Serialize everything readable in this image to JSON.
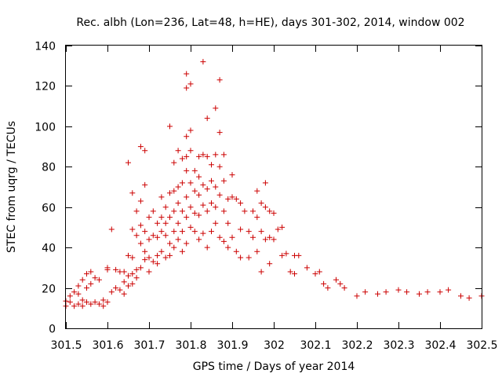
{
  "chart_data": {
    "type": "scatter",
    "title": "Rec. albh (Lon=236, Lat=48, h=HE), days 301-302, 2014, window 002",
    "xlabel": "GPS time / Days of year 2014",
    "ylabel": "STEC from uqrg / TECUs",
    "xlim": [
      301.5,
      302.5
    ],
    "ylim": [
      0,
      140
    ],
    "xticks": [
      301.5,
      301.6,
      301.7,
      301.8,
      301.9,
      302,
      302.1,
      302.2,
      302.3,
      302.4,
      302.5
    ],
    "xtick_labels": [
      "301.5",
      "301.6",
      "301.7",
      "301.8",
      "301.9",
      "302",
      "302.1",
      "302.2",
      "302.3",
      "302.4",
      "302.5"
    ],
    "yticks": [
      0,
      20,
      40,
      60,
      80,
      100,
      120,
      140
    ],
    "ytick_labels": [
      "0",
      "20",
      "40",
      "60",
      "80",
      "100",
      "120",
      "140"
    ],
    "grid": false,
    "marker": "+",
    "marker_color": "#cc0000",
    "points": [
      [
        301.5,
        13.5
      ],
      [
        301.5,
        11
      ],
      [
        301.51,
        16
      ],
      [
        301.51,
        13
      ],
      [
        301.52,
        18
      ],
      [
        301.52,
        11
      ],
      [
        301.53,
        21
      ],
      [
        301.53,
        17
      ],
      [
        301.53,
        12
      ],
      [
        301.54,
        24
      ],
      [
        301.54,
        14
      ],
      [
        301.54,
        11
      ],
      [
        301.55,
        27
      ],
      [
        301.55,
        20
      ],
      [
        301.55,
        13
      ],
      [
        301.56,
        28
      ],
      [
        301.56,
        22
      ],
      [
        301.56,
        12
      ],
      [
        301.57,
        25
      ],
      [
        301.57,
        13
      ],
      [
        301.58,
        24
      ],
      [
        301.58,
        12
      ],
      [
        301.59,
        11
      ],
      [
        301.59,
        14
      ],
      [
        301.6,
        30
      ],
      [
        301.6,
        29
      ],
      [
        301.6,
        13
      ],
      [
        301.61,
        49
      ],
      [
        301.61,
        18
      ],
      [
        301.62,
        29
      ],
      [
        301.62,
        20
      ],
      [
        301.63,
        28
      ],
      [
        301.63,
        19
      ],
      [
        301.64,
        28
      ],
      [
        301.64,
        23
      ],
      [
        301.64,
        17
      ],
      [
        301.65,
        82
      ],
      [
        301.65,
        36
      ],
      [
        301.65,
        26
      ],
      [
        301.65,
        21
      ],
      [
        301.66,
        35
      ],
      [
        301.66,
        27
      ],
      [
        301.66,
        22
      ],
      [
        301.66,
        67
      ],
      [
        301.66,
        49
      ],
      [
        301.67,
        58
      ],
      [
        301.67,
        46
      ],
      [
        301.67,
        29
      ],
      [
        301.67,
        25
      ],
      [
        301.68,
        90
      ],
      [
        301.68,
        63
      ],
      [
        301.68,
        51
      ],
      [
        301.68,
        42
      ],
      [
        301.68,
        30
      ],
      [
        301.69,
        88
      ],
      [
        301.69,
        71
      ],
      [
        301.69,
        48
      ],
      [
        301.69,
        38
      ],
      [
        301.69,
        34
      ],
      [
        301.7,
        55
      ],
      [
        301.7,
        44
      ],
      [
        301.7,
        35
      ],
      [
        301.7,
        28
      ],
      [
        301.71,
        58
      ],
      [
        301.71,
        46
      ],
      [
        301.71,
        33
      ],
      [
        301.72,
        52
      ],
      [
        301.72,
        45
      ],
      [
        301.72,
        36
      ],
      [
        301.72,
        32
      ],
      [
        301.73,
        65
      ],
      [
        301.73,
        55
      ],
      [
        301.73,
        48
      ],
      [
        301.73,
        38
      ],
      [
        301.74,
        60
      ],
      [
        301.74,
        52
      ],
      [
        301.74,
        46
      ],
      [
        301.74,
        35
      ],
      [
        301.75,
        100
      ],
      [
        301.75,
        67
      ],
      [
        301.75,
        55
      ],
      [
        301.75,
        42
      ],
      [
        301.75,
        36
      ],
      [
        301.76,
        82
      ],
      [
        301.76,
        68
      ],
      [
        301.76,
        58
      ],
      [
        301.76,
        48
      ],
      [
        301.76,
        40
      ],
      [
        301.77,
        88
      ],
      [
        301.77,
        70
      ],
      [
        301.77,
        62
      ],
      [
        301.77,
        52
      ],
      [
        301.77,
        44
      ],
      [
        301.78,
        84
      ],
      [
        301.78,
        72
      ],
      [
        301.78,
        58
      ],
      [
        301.78,
        48
      ],
      [
        301.78,
        38
      ],
      [
        301.79,
        126
      ],
      [
        301.79,
        119
      ],
      [
        301.79,
        95
      ],
      [
        301.79,
        85
      ],
      [
        301.79,
        78
      ],
      [
        301.79,
        65
      ],
      [
        301.79,
        55
      ],
      [
        301.79,
        42
      ],
      [
        301.8,
        121
      ],
      [
        301.8,
        98
      ],
      [
        301.8,
        88
      ],
      [
        301.8,
        72
      ],
      [
        301.8,
        60
      ],
      [
        301.8,
        50
      ],
      [
        301.81,
        78
      ],
      [
        301.81,
        68
      ],
      [
        301.81,
        57
      ],
      [
        301.81,
        48
      ],
      [
        301.82,
        85
      ],
      [
        301.82,
        75
      ],
      [
        301.82,
        66
      ],
      [
        301.82,
        56
      ],
      [
        301.82,
        44
      ],
      [
        301.83,
        132
      ],
      [
        301.83,
        86
      ],
      [
        301.83,
        71
      ],
      [
        301.83,
        61
      ],
      [
        301.83,
        47
      ],
      [
        301.84,
        104
      ],
      [
        301.84,
        85
      ],
      [
        301.84,
        69
      ],
      [
        301.84,
        58
      ],
      [
        301.84,
        40
      ],
      [
        301.85,
        81
      ],
      [
        301.85,
        73
      ],
      [
        301.85,
        62
      ],
      [
        301.85,
        48
      ],
      [
        301.86,
        109
      ],
      [
        301.86,
        86
      ],
      [
        301.86,
        70
      ],
      [
        301.86,
        60
      ],
      [
        301.86,
        52
      ],
      [
        301.87,
        123
      ],
      [
        301.87,
        97
      ],
      [
        301.87,
        80
      ],
      [
        301.87,
        66
      ],
      [
        301.87,
        45
      ],
      [
        301.88,
        86
      ],
      [
        301.88,
        73
      ],
      [
        301.88,
        58
      ],
      [
        301.88,
        43
      ],
      [
        301.89,
        64
      ],
      [
        301.89,
        52
      ],
      [
        301.89,
        40
      ],
      [
        301.9,
        76
      ],
      [
        301.9,
        65
      ],
      [
        301.9,
        45
      ],
      [
        301.91,
        64
      ],
      [
        301.91,
        38
      ],
      [
        301.92,
        62
      ],
      [
        301.92,
        49
      ],
      [
        301.92,
        35
      ],
      [
        301.93,
        58
      ],
      [
        301.94,
        48
      ],
      [
        301.94,
        35
      ],
      [
        301.95,
        58
      ],
      [
        301.95,
        45
      ],
      [
        301.96,
        68
      ],
      [
        301.96,
        55
      ],
      [
        301.96,
        38
      ],
      [
        301.97,
        62
      ],
      [
        301.97,
        48
      ],
      [
        301.97,
        28
      ],
      [
        301.98,
        72
      ],
      [
        301.98,
        60
      ],
      [
        301.98,
        44
      ],
      [
        301.99,
        58
      ],
      [
        301.99,
        45
      ],
      [
        301.99,
        32
      ],
      [
        302.0,
        57
      ],
      [
        302.0,
        44
      ],
      [
        302.01,
        49
      ],
      [
        302.02,
        50
      ],
      [
        302.02,
        36
      ],
      [
        302.03,
        37
      ],
      [
        302.04,
        28
      ],
      [
        302.05,
        27
      ],
      [
        302.05,
        36
      ],
      [
        302.06,
        36
      ],
      [
        302.08,
        30
      ],
      [
        302.1,
        27
      ],
      [
        302.11,
        28
      ],
      [
        302.12,
        22
      ],
      [
        302.13,
        20
      ],
      [
        302.15,
        24
      ],
      [
        302.16,
        22
      ],
      [
        302.17,
        20
      ],
      [
        302.2,
        16
      ],
      [
        302.22,
        18
      ],
      [
        302.25,
        17
      ],
      [
        302.27,
        18
      ],
      [
        302.3,
        19
      ],
      [
        302.32,
        18
      ],
      [
        302.35,
        17
      ],
      [
        302.37,
        18
      ],
      [
        302.4,
        18
      ],
      [
        302.42,
        19
      ],
      [
        302.45,
        16
      ],
      [
        302.47,
        15
      ],
      [
        302.5,
        16
      ]
    ]
  }
}
